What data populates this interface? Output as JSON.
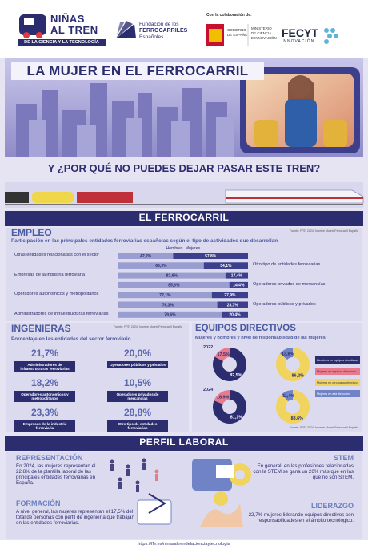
{
  "header": {
    "brand": [
      "NIÑAS",
      "AL TREN"
    ],
    "brand_sub": "DE LA CIENCIA Y LA TECNOLOGÍA",
    "foundation": [
      "Fundación de los",
      "FERROCARRILES",
      "Españoles"
    ],
    "collab": "Con la colaboración de:",
    "gov": [
      "GOBIERNO",
      "DE ESPAÑA"
    ],
    "ministry": [
      "MINISTERIO",
      "DE CIENCIA",
      "E INNOVACIÓN"
    ],
    "fecyt": "FECYT",
    "fecyt_sub": "INNOVACIÓN"
  },
  "hero": {
    "title": "LA MUJER EN EL FERROCARRIL",
    "question": "Y ¿POR QUÉ NO PUEDES DEJAR PASAR ESTE TREN?"
  },
  "section_title": "EL FERROCARRIL",
  "employment": {
    "title": "EMPLEO",
    "source": "Fuente: FFE, 2024. Informe Mujer&Ferrocarril España",
    "subtitle": "Participación en las principales entidades ferroviarias españolas según el tipo de actividades que desarrollan",
    "series": [
      {
        "name": "Hombres",
        "color": "#9a9dd0"
      },
      {
        "name": "Mujeres",
        "color": "#3b3f8c"
      }
    ],
    "rows": [
      {
        "label": "Otras entidades relacionadas con el sector",
        "values": [
          42.2,
          57.8
        ],
        "value_labels": [
          "42,2%",
          "57,8%"
        ]
      },
      {
        "label": "Otro tipo de entidades ferroviarias",
        "values": [
          65.9,
          34.1
        ],
        "value_labels": [
          "65,9%",
          "34,1%"
        ]
      },
      {
        "label": "Empresas de la industria ferroviaria",
        "values": [
          82.6,
          17.4
        ],
        "value_labels": [
          "82,6%",
          "17,4%"
        ]
      },
      {
        "label": "Operadores privados de mercancías",
        "values": [
          85.6,
          14.4
        ],
        "value_labels": [
          "85,6%",
          "14,4%"
        ]
      },
      {
        "label": "Operadores autonómicos y metropolitanos",
        "values": [
          72.1,
          27.9
        ],
        "value_labels": [
          "72,1%",
          "27,9%"
        ]
      },
      {
        "label": "Operadores públicos y privados",
        "values": [
          76.3,
          23.7
        ],
        "value_labels": [
          "76,3%",
          "23,7%"
        ]
      },
      {
        "label": "Administradores de infraestructuras ferroviarias",
        "values": [
          79.6,
          20.4
        ],
        "value_labels": [
          "79,6%",
          "20,4%"
        ]
      }
    ]
  },
  "engineers": {
    "title": "INGENIERAS",
    "source": "Fuente: FFE, 2024. Informe Mujer&Ferrocarril España",
    "subtitle": "Porcentaje en las entidades del sector ferroviario",
    "items": [
      {
        "value": "21,7%",
        "label": "Administradores de infraestructuras ferroviarias"
      },
      {
        "value": "20,0%",
        "label": "Operadores públicos y privados"
      },
      {
        "value": "18,2%",
        "label": "Operadores autonómicos y metropolitanos"
      },
      {
        "value": "10,5%",
        "label": "Operadores privados de mercancías"
      },
      {
        "value": "23,3%",
        "label": "Empresas de la industria ferroviaria"
      },
      {
        "value": "28,8%",
        "label": "Otro tipo de entidades ferroviarias"
      }
    ]
  },
  "management": {
    "title": "EQUIPOS DIRECTIVOS",
    "subtitle": "Mujeres y hombres y nivel de responsabilidad de las mujeres",
    "source": "Fuente: FFE, 2024. Informe Mujer&Ferrocarril España",
    "legend": [
      {
        "name": "Hombres en equipos directivos",
        "color": "#2b2d6e"
      },
      {
        "name": "Mujeres en equipos directivos",
        "color": "#e87a8e"
      },
      {
        "name": "Mujeres en otro cargo directivo",
        "color": "#f1d45e"
      },
      {
        "name": "Mujeres en alta dirección",
        "color": "#6f83c6"
      }
    ],
    "years": [
      {
        "year": "2022",
        "overall": {
          "values": [
            82.5,
            17.5
          ],
          "value_labels": [
            "82,5%",
            "17,5%"
          ]
        },
        "women": {
          "values": [
            86.2,
            13.8
          ],
          "value_labels": [
            "86,2%",
            "13,8%"
          ]
        }
      },
      {
        "year": "2024",
        "overall": {
          "values": [
            81.1,
            18.9
          ],
          "value_labels": [
            "81,1%",
            "18,9%"
          ]
        },
        "women": {
          "values": [
            88.6,
            11.4
          ],
          "value_labels": [
            "88,6%",
            "11,4%"
          ]
        }
      }
    ]
  },
  "profile": {
    "title": "PERFIL LABORAL",
    "blocks": [
      {
        "heading": "REPRESENTACIÓN",
        "text": "En 2024, las mujeres representan el 22,8% de la plantilla laboral de las principales entidades ferroviarias en España."
      },
      {
        "heading": "STEM",
        "text": "En general, en las profesiones relacionadas con la STEM se gana un 26% más que en las que no son STEM."
      },
      {
        "heading": "FORMACIÓN",
        "text": "A nivel general, las mujeres representan el 17,5% del total de personas con perfil de ingeniería que trabajan en las entidades ferroviarias."
      },
      {
        "heading": "LIDERAZGO",
        "text": "22,7% mujeres liderando equipos directivos con responsabilidades en el ámbito tecnológico."
      }
    ],
    "url": "https://ffe.es/ninasaltrendelacienciaytecnologia"
  }
}
